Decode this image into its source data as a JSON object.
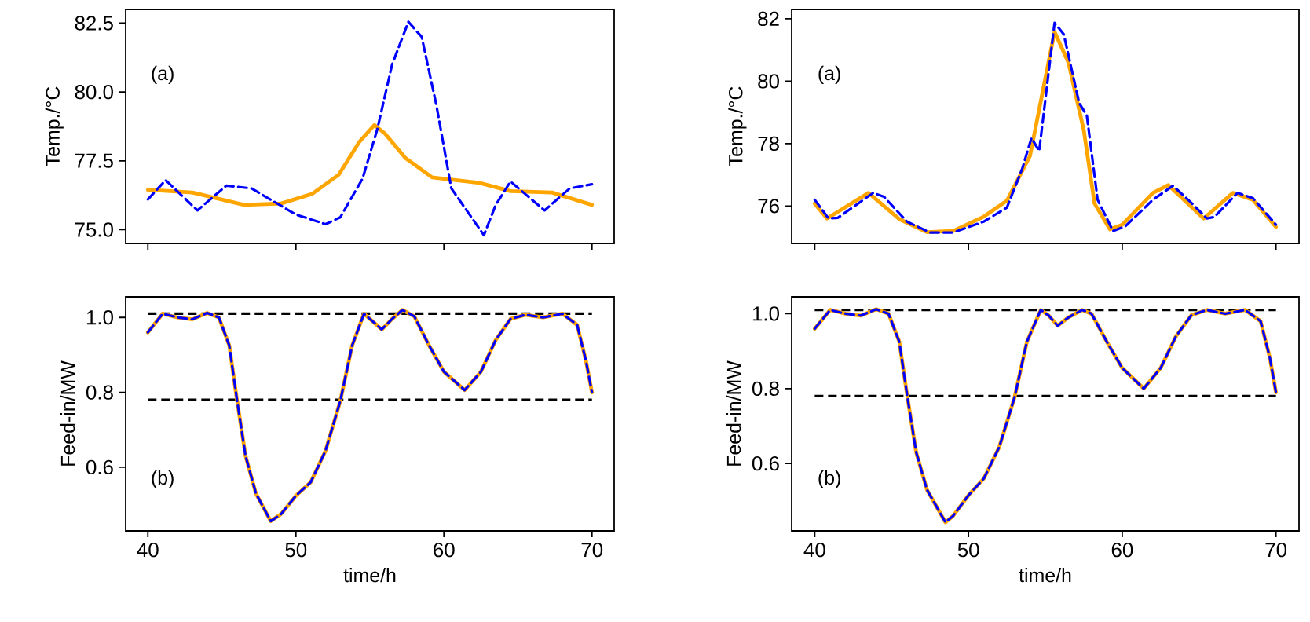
{
  "chart_data": [
    {
      "type": "line",
      "ylabel": "Temp./°C",
      "xlim": [
        38.5,
        71.5
      ],
      "ylim": [
        74.5,
        83.0
      ],
      "xticks": [
        40,
        50,
        60,
        70
      ],
      "yticks": [
        {
          "value": 75,
          "label": "75.0"
        },
        77.5,
        {
          "value": 80,
          "label": "80.0"
        },
        82.5
      ],
      "tick_labels": "y",
      "annotations": [
        "(a)"
      ],
      "series": [
        {
          "color": "#ffa500",
          "line_style": "solid",
          "x": [
            40,
            43,
            46.5,
            49,
            51.1,
            52.9,
            54.3,
            55.3,
            56,
            57.4,
            59.2,
            62.4,
            64.5,
            67.3,
            70
          ],
          "values": [
            76.45,
            76.35,
            75.9,
            75.95,
            76.3,
            77.0,
            78.2,
            78.8,
            78.5,
            77.6,
            76.9,
            76.7,
            76.4,
            76.35,
            75.9
          ]
        },
        {
          "color": "#0000ff",
          "line_style": "dashed",
          "x": [
            40,
            41.2,
            43.35,
            45.3,
            47,
            50,
            52,
            53,
            54.5,
            55.5,
            56.5,
            57.6,
            58.5,
            59.5,
            60.5,
            62.7,
            63.5,
            64.5,
            65.7,
            66.8,
            68.5,
            70
          ],
          "values": [
            76.1,
            76.8,
            75.7,
            76.6,
            76.5,
            75.55,
            75.2,
            75.45,
            76.85,
            78.65,
            81.0,
            82.55,
            82.0,
            79.5,
            76.5,
            74.8,
            75.9,
            76.75,
            76.2,
            75.7,
            76.5,
            76.65
          ]
        }
      ]
    },
    {
      "type": "line",
      "ylabel": "Temp./°C",
      "xlim": [
        38.5,
        71.5
      ],
      "ylim": [
        74.8,
        82.3
      ],
      "xticks": [
        40,
        50,
        60,
        70
      ],
      "yticks": [
        76,
        78,
        80,
        82
      ],
      "tick_labels": "y",
      "annotations": [
        "(a)"
      ],
      "series": [
        {
          "color": "#ffa500",
          "line_style": "solid",
          "x": [
            40,
            40.8,
            43.5,
            45.5,
            47.3,
            49,
            51,
            52.5,
            54,
            55,
            55.6,
            56.5,
            57.5,
            58.2,
            59.2,
            60,
            62,
            63,
            65.3,
            67.2,
            68.5,
            70
          ],
          "values": [
            76.08,
            75.6,
            76.42,
            75.58,
            75.16,
            75.2,
            75.66,
            76.17,
            77.6,
            80.1,
            81.58,
            80.6,
            78.43,
            76.08,
            75.25,
            75.4,
            76.42,
            76.67,
            75.6,
            76.42,
            76.2,
            75.33
          ]
        },
        {
          "color": "#0000ff",
          "line_style": "dashed",
          "x": [
            40,
            40.9,
            41.5,
            43.8,
            44.5,
            46,
            47.5,
            49,
            51,
            52.5,
            53.5,
            54.1,
            54.6,
            55.6,
            56.2,
            57.2,
            57.7,
            58.4,
            59.4,
            60.2,
            62,
            63.3,
            64.5,
            65.5,
            66,
            67.5,
            68.5,
            70
          ],
          "values": [
            76.2,
            75.6,
            75.62,
            76.42,
            76.3,
            75.5,
            75.15,
            75.15,
            75.5,
            75.95,
            77.2,
            78.18,
            77.76,
            81.87,
            81.5,
            79.3,
            78.9,
            76.2,
            75.2,
            75.35,
            76.2,
            76.65,
            76.1,
            75.6,
            75.65,
            76.42,
            76.25,
            75.4
          ]
        }
      ]
    },
    {
      "type": "line",
      "ylabel": "Feed-in/MW",
      "xlabel": "time/h",
      "xlim": [
        38.5,
        71.5
      ],
      "ylim": [
        0.43,
        1.055
      ],
      "xticks": [
        40,
        50,
        60,
        70
      ],
      "yticks": [
        0.6,
        0.8,
        {
          "value": 1,
          "label": "1.0"
        }
      ],
      "annotations": [
        "(b)"
      ],
      "ref_lines": [
        {
          "axis": "y",
          "value": 1.01,
          "color": "#000000",
          "line_style": "dashed"
        },
        {
          "axis": "y",
          "value": 0.78,
          "color": "#000000",
          "line_style": "dashed"
        }
      ],
      "series": [
        {
          "color": "#ffa500",
          "line_style": "solid",
          "x": [
            40,
            41,
            42,
            43,
            44,
            44.8,
            45.5,
            46,
            46.6,
            47.3,
            48.3,
            49,
            50,
            51,
            52,
            53,
            53.8,
            54.6,
            55,
            55.8,
            56.5,
            57.2,
            58,
            59,
            60,
            61.4,
            62.5,
            63.5,
            64.5,
            65.5,
            66.7,
            68,
            69,
            69.6,
            70
          ],
          "values": [
            0.96,
            1.01,
            1.0,
            0.995,
            1.012,
            1.0,
            0.925,
            0.785,
            0.63,
            0.53,
            0.456,
            0.475,
            0.524,
            0.56,
            0.644,
            0.777,
            0.925,
            1.01,
            0.996,
            0.968,
            0.996,
            1.02,
            1.003,
            0.925,
            0.855,
            0.806,
            0.855,
            0.94,
            0.996,
            1.007,
            1.0,
            1.01,
            0.98,
            0.883,
            0.8
          ]
        },
        {
          "color": "#0000ff",
          "line_style": "dashed",
          "x": [
            40,
            41,
            42,
            43,
            44,
            44.8,
            45.5,
            46,
            46.6,
            47.3,
            48.3,
            49,
            50,
            51,
            52,
            53,
            53.8,
            54.6,
            55,
            55.8,
            56.5,
            57.2,
            58,
            59,
            60,
            61.4,
            62.5,
            63.5,
            64.5,
            65.5,
            66.7,
            68,
            69,
            69.6,
            70
          ],
          "values": [
            0.96,
            1.01,
            1.0,
            0.995,
            1.012,
            1.0,
            0.925,
            0.785,
            0.63,
            0.53,
            0.456,
            0.475,
            0.524,
            0.56,
            0.644,
            0.777,
            0.925,
            1.01,
            0.996,
            0.968,
            0.996,
            1.02,
            1.003,
            0.925,
            0.855,
            0.806,
            0.855,
            0.94,
            0.996,
            1.007,
            1.0,
            1.01,
            0.98,
            0.883,
            0.8
          ]
        }
      ]
    },
    {
      "type": "line",
      "ylabel": "Feed-in/MW",
      "xlabel": "time/h",
      "xlim": [
        38.5,
        71.5
      ],
      "ylim": [
        0.42,
        1.045
      ],
      "xticks": [
        40,
        50,
        60,
        70
      ],
      "yticks": [
        0.6,
        0.8,
        {
          "value": 1,
          "label": "1.0"
        }
      ],
      "annotations": [
        "(b)"
      ],
      "ref_lines": [
        {
          "axis": "y",
          "value": 1.01,
          "color": "#000000",
          "line_style": "dashed"
        },
        {
          "axis": "y",
          "value": 0.78,
          "color": "#000000",
          "line_style": "dashed"
        }
      ],
      "series": [
        {
          "color": "#ffa500",
          "line_style": "solid",
          "x": [
            40,
            41,
            42,
            43,
            44,
            44.8,
            45.5,
            46,
            46.6,
            47.3,
            48.5,
            49,
            50,
            51,
            52,
            53,
            53.8,
            54.7,
            55.2,
            55.8,
            56.5,
            57.4,
            58,
            59,
            60,
            61.4,
            62.5,
            63.5,
            64.5,
            65.5,
            66.7,
            68,
            69,
            69.6,
            70
          ],
          "values": [
            0.96,
            1.01,
            1.0,
            0.995,
            1.012,
            1.0,
            0.925,
            0.785,
            0.63,
            0.53,
            0.443,
            0.46,
            0.515,
            0.56,
            0.644,
            0.777,
            0.925,
            1.01,
            0.996,
            0.968,
            0.99,
            1.01,
            1.0,
            0.925,
            0.855,
            0.8,
            0.855,
            0.94,
            0.996,
            1.01,
            1.0,
            1.01,
            0.98,
            0.883,
            0.79
          ]
        },
        {
          "color": "#0000ff",
          "line_style": "dashed",
          "x": [
            40,
            41,
            42,
            43,
            44,
            44.8,
            45.5,
            46,
            46.6,
            47.3,
            48.5,
            49,
            50,
            51,
            52,
            53,
            53.8,
            54.7,
            55.2,
            55.8,
            56.5,
            57.4,
            58,
            59,
            60,
            61.4,
            62.5,
            63.5,
            64.5,
            65.5,
            66.7,
            68,
            69,
            69.6,
            70
          ],
          "values": [
            0.96,
            1.01,
            1.0,
            0.995,
            1.012,
            1.0,
            0.925,
            0.785,
            0.63,
            0.53,
            0.443,
            0.46,
            0.515,
            0.56,
            0.644,
            0.777,
            0.925,
            1.01,
            0.996,
            0.968,
            0.99,
            1.01,
            1.0,
            0.925,
            0.855,
            0.8,
            0.855,
            0.94,
            0.996,
            1.01,
            1.0,
            1.01,
            0.98,
            0.883,
            0.79
          ]
        }
      ]
    }
  ]
}
